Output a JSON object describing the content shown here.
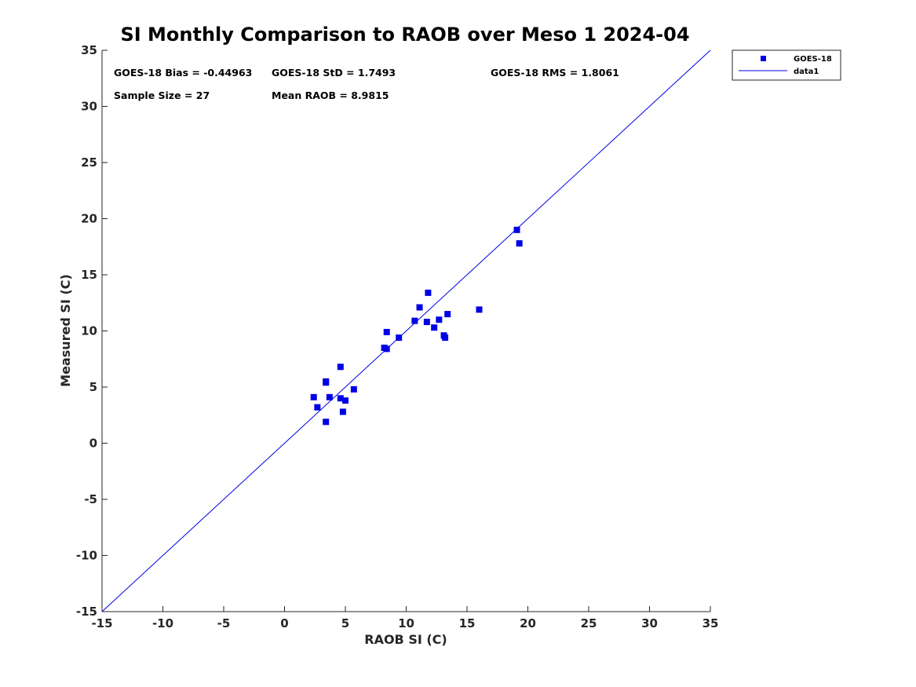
{
  "chart_data": {
    "type": "scatter",
    "title": "SI Monthly Comparison to RAOB over Meso 1 2024-04",
    "xlabel": "RAOB SI (C)",
    "ylabel": "Measured SI (C)",
    "xlim": [
      -15,
      35
    ],
    "ylim": [
      -15,
      35
    ],
    "xticks": [
      -15,
      -10,
      -5,
      0,
      5,
      10,
      15,
      20,
      25,
      30,
      35
    ],
    "yticks": [
      -15,
      -10,
      -5,
      0,
      5,
      10,
      15,
      20,
      25,
      30,
      35
    ],
    "xtick_labels": [
      "-15",
      "-10",
      "-5",
      "0",
      "5",
      "10",
      "15",
      "20",
      "25",
      "30",
      "35"
    ],
    "ytick_labels": [
      "-15",
      "-10",
      "-5",
      "0",
      "5",
      "10",
      "15",
      "20",
      "25",
      "30",
      "35"
    ],
    "grid": false,
    "legend_position": "top-right-outside",
    "series": [
      {
        "name": "GOES-18",
        "marker": "square",
        "color": "#0000e6",
        "x": [
          2.4,
          2.7,
          3.4,
          3.4,
          3.4,
          3.7,
          4.6,
          4.6,
          4.8,
          5.0,
          5.7,
          8.2,
          8.4,
          8.4,
          9.4,
          10.7,
          11.1,
          11.7,
          11.8,
          12.3,
          12.7,
          13.1,
          13.2,
          13.4,
          16.0,
          19.1,
          19.3
        ],
        "y": [
          4.1,
          3.2,
          5.5,
          5.4,
          1.9,
          4.1,
          6.8,
          4.0,
          2.8,
          3.8,
          4.8,
          8.5,
          8.4,
          9.9,
          9.4,
          10.9,
          12.1,
          10.8,
          13.4,
          10.3,
          11.0,
          9.6,
          9.4,
          11.5,
          11.9,
          19.0,
          17.8
        ]
      },
      {
        "name": "data1",
        "type": "line",
        "color": "#0000e6",
        "x": [
          -15,
          35
        ],
        "y": [
          -15,
          35
        ]
      }
    ],
    "annotations": [
      {
        "id": "bias",
        "text": "GOES-18 Bias = -0.44963"
      },
      {
        "id": "std",
        "text": "GOES-18 StD = 1.7493"
      },
      {
        "id": "rms",
        "text": "GOES-18 RMS = 1.8061"
      },
      {
        "id": "sample",
        "text": "Sample Size = 27"
      },
      {
        "id": "mean",
        "text": "Mean RAOB = 8.9815"
      }
    ],
    "legend": [
      {
        "label": "GOES-18",
        "symbol": "square"
      },
      {
        "label": "data1",
        "symbol": "line"
      }
    ]
  }
}
